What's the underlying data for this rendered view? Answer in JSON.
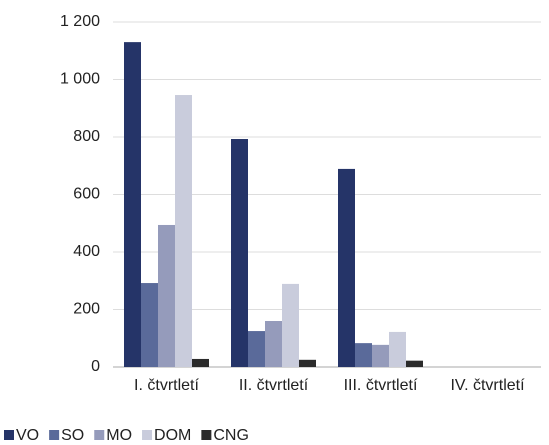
{
  "chart_data": {
    "type": "bar",
    "categories": [
      "I. čtvrtletí",
      "II. čtvrtletí",
      "III. čtvrtletí",
      "IV. čtvrtletí"
    ],
    "series": [
      {
        "name": "VO",
        "color": "#253468",
        "values": [
          1130,
          793,
          689,
          null
        ]
      },
      {
        "name": "SO",
        "color": "#5a6a9a",
        "values": [
          292,
          125,
          83,
          null
        ]
      },
      {
        "name": "MO",
        "color": "#959bbb",
        "values": [
          494,
          160,
          77,
          null
        ]
      },
      {
        "name": "DOM",
        "color": "#c9ccdc",
        "values": [
          946,
          289,
          122,
          null
        ]
      },
      {
        "name": "CNG",
        "color": "#2b2b2b",
        "values": [
          28,
          25,
          22,
          null
        ]
      }
    ],
    "ylim": [
      0,
      1200
    ],
    "yticks": [
      0,
      200,
      400,
      600,
      800,
      {
        "value": 1000,
        "label": "1 000"
      },
      {
        "value": 1200,
        "label": "1 200"
      }
    ],
    "grid": true,
    "legend": "bottom"
  }
}
